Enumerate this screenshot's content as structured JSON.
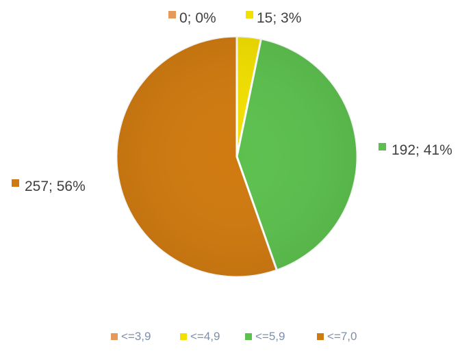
{
  "chart_data": {
    "type": "pie",
    "slices": [
      {
        "category": "<=3,9",
        "value": 0,
        "percent": "0%",
        "label": "0; 0%",
        "color": "#e39a5a"
      },
      {
        "category": "<=4,9",
        "value": 15,
        "percent": "3%",
        "label": "15; 3%",
        "color": "#f2e000"
      },
      {
        "category": "<=5,9",
        "value": 192,
        "percent": "41%",
        "label": "192; 41%",
        "color": "#5cc04e"
      },
      {
        "category": "<=7,0",
        "value": 257,
        "percent": "56%",
        "label": "257; 56%",
        "color": "#cf7a10"
      }
    ],
    "legend": {
      "position": "bottom",
      "entries": [
        "<=3,9",
        "<=4,9",
        "<=5,9",
        "<=7,0"
      ]
    }
  }
}
